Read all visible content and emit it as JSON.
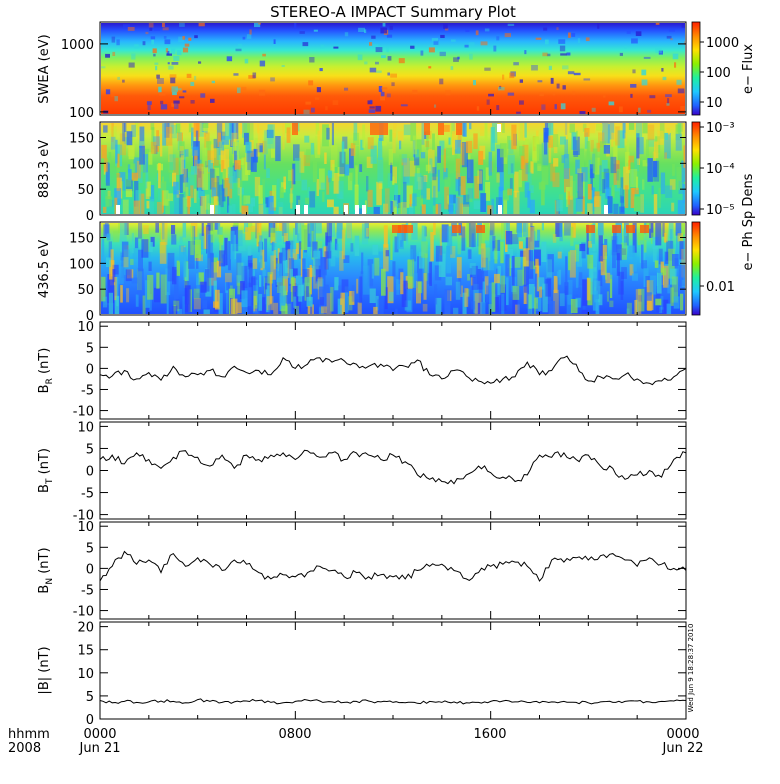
{
  "title": "STEREO-A IMPACT Summary Plot",
  "footer": {
    "time_label": "hhmm",
    "year": "2008",
    "x_ticks": [
      "0000",
      "0800",
      "1600",
      "0000"
    ],
    "date_start": "Jun 21",
    "date_end": "Jun 22"
  },
  "stamp": "Wed Jun  9 18:28:37 2010",
  "chart_data": [
    {
      "type": "heatmap",
      "name": "swea",
      "ylabel": "SWEA (eV)",
      "yscale": "log",
      "ylim": [
        90,
        2100
      ],
      "y_ticks": [
        "1000",
        "100"
      ],
      "colorbar_label": "e− Flux",
      "colorbar_ticks": [
        "1000",
        "100",
        "10"
      ],
      "x": [
        0,
        24
      ]
    },
    {
      "type": "heatmap",
      "name": "pad-883",
      "ylabel": "883.3 eV",
      "ylim": [
        0,
        180
      ],
      "y_ticks": [
        "150",
        "100",
        "50",
        "0"
      ],
      "colorbar_label": "e− Ph Sp Dens",
      "colorbar_ticks": [
        "10⁻³",
        "10⁻⁴",
        "10⁻⁵"
      ],
      "x": [
        0,
        24
      ]
    },
    {
      "type": "heatmap",
      "name": "pad-436",
      "ylabel": "436.5 eV",
      "ylim": [
        0,
        180
      ],
      "y_ticks": [
        "150",
        "100",
        "50",
        "0"
      ],
      "colorbar_label": "e− Ph Sp Dens",
      "colorbar_ticks": [
        "0.01"
      ],
      "x": [
        0,
        24
      ]
    },
    {
      "type": "line",
      "name": "br",
      "ylabel": "B_R (nT)",
      "ylim": [
        -12,
        11
      ],
      "y_ticks": [
        "10",
        "5",
        "0",
        "-5",
        "-10"
      ],
      "x": [
        0.0,
        0.5,
        1.0,
        1.5,
        2.0,
        2.5,
        3.0,
        3.5,
        4.0,
        4.5,
        5.0,
        5.5,
        6.0,
        6.5,
        7.0,
        7.5,
        8.0,
        8.5,
        9.0,
        9.5,
        10.0,
        10.5,
        11.0,
        11.5,
        12.0,
        12.5,
        13.0,
        13.5,
        14.0,
        14.5,
        15.0,
        15.5,
        16.0,
        16.5,
        17.0,
        17.5,
        18.0,
        18.5,
        19.0,
        19.5,
        20.0,
        20.5,
        21.0,
        21.5,
        22.0,
        22.5,
        23.0,
        23.5,
        24.0
      ],
      "y": [
        -1.5,
        -1.8,
        -0.5,
        -2.5,
        -1.0,
        -2.8,
        0.5,
        -2.0,
        -1.5,
        -0.5,
        -2.0,
        0.5,
        -1.0,
        -0.5,
        -1.5,
        2.5,
        0.0,
        1.0,
        2.5,
        1.5,
        1.8,
        1.0,
        0.5,
        1.0,
        -0.5,
        0.5,
        2.0,
        -1.5,
        -2.5,
        -0.5,
        -1.8,
        -3.0,
        -3.5,
        -2.5,
        -2.0,
        1.5,
        -1.5,
        -0.5,
        2.5,
        1.0,
        -3.0,
        -2.0,
        -2.5,
        -1.5,
        -2.5,
        -3.5,
        -3.0,
        -2.0,
        0.0
      ]
    },
    {
      "type": "line",
      "name": "bt",
      "ylabel": "B_T (nT)",
      "ylim": [
        -11,
        11
      ],
      "y_ticks": [
        "10",
        "5",
        "0",
        "-5",
        "-10"
      ],
      "x": [
        0.0,
        0.5,
        1.0,
        1.5,
        2.0,
        2.5,
        3.0,
        3.5,
        4.0,
        4.5,
        5.0,
        5.5,
        6.0,
        6.5,
        7.0,
        7.5,
        8.0,
        8.5,
        9.0,
        9.5,
        10.0,
        10.5,
        11.0,
        11.5,
        12.0,
        12.5,
        13.0,
        13.5,
        14.0,
        14.5,
        15.0,
        15.5,
        16.0,
        16.5,
        17.0,
        17.5,
        18.0,
        18.5,
        19.0,
        19.5,
        20.0,
        20.5,
        21.0,
        21.5,
        22.0,
        22.5,
        23.0,
        23.5,
        24.0
      ],
      "y": [
        2.5,
        3.5,
        1.5,
        4.0,
        2.5,
        0.5,
        3.0,
        4.5,
        3.0,
        1.0,
        3.5,
        0.5,
        3.5,
        2.5,
        3.5,
        4.0,
        2.5,
        4.5,
        3.0,
        4.0,
        2.5,
        4.0,
        3.5,
        2.5,
        3.5,
        2.0,
        -1.0,
        -2.0,
        -2.5,
        -3.0,
        -1.0,
        1.0,
        -0.5,
        -1.5,
        -2.5,
        -1.0,
        3.5,
        3.0,
        4.0,
        2.5,
        3.5,
        1.0,
        0.5,
        -2.0,
        -1.0,
        0.0,
        -1.5,
        2.5,
        4.0
      ]
    },
    {
      "type": "line",
      "name": "bn",
      "ylabel": "B_N (nT)",
      "ylim": [
        -12,
        11
      ],
      "y_ticks": [
        "10",
        "5",
        "0",
        "-5",
        "-10"
      ],
      "x": [
        0.0,
        0.5,
        1.0,
        1.5,
        2.0,
        2.5,
        3.0,
        3.5,
        4.0,
        4.5,
        5.0,
        5.5,
        6.0,
        6.5,
        7.0,
        7.5,
        8.0,
        8.5,
        9.0,
        9.5,
        10.0,
        10.5,
        11.0,
        11.5,
        12.0,
        12.5,
        13.0,
        13.5,
        14.0,
        14.5,
        15.0,
        15.5,
        16.0,
        16.5,
        17.0,
        17.5,
        18.0,
        18.5,
        19.0,
        19.5,
        20.0,
        20.5,
        21.0,
        21.5,
        22.0,
        22.5,
        23.0,
        23.5,
        24.0
      ],
      "y": [
        -3.0,
        0.5,
        4.0,
        1.0,
        2.0,
        -1.0,
        3.5,
        0.5,
        2.5,
        1.0,
        -0.5,
        2.0,
        1.0,
        -1.0,
        -2.5,
        -1.5,
        -2.0,
        -1.0,
        0.5,
        -0.5,
        -2.0,
        -1.0,
        -2.0,
        -1.5,
        -2.0,
        -2.5,
        -0.5,
        0.5,
        1.0,
        -0.5,
        -2.5,
        -1.0,
        0.5,
        1.0,
        1.5,
        0.5,
        -3.0,
        2.0,
        1.5,
        2.5,
        2.0,
        3.0,
        3.5,
        2.0,
        0.5,
        2.5,
        1.0,
        0.0,
        -0.5
      ]
    },
    {
      "type": "line",
      "name": "bmag",
      "ylabel": "|B| (nT)",
      "ylim": [
        0,
        21
      ],
      "y_ticks": [
        "20",
        "15",
        "10",
        "5",
        "0"
      ],
      "x": [
        0.0,
        0.5,
        1.0,
        1.5,
        2.0,
        2.5,
        3.0,
        3.5,
        4.0,
        4.5,
        5.0,
        5.5,
        6.0,
        6.5,
        7.0,
        7.5,
        8.0,
        8.5,
        9.0,
        9.5,
        10.0,
        10.5,
        11.0,
        11.5,
        12.0,
        12.5,
        13.0,
        13.5,
        14.0,
        14.5,
        15.0,
        15.5,
        16.0,
        16.5,
        17.0,
        17.5,
        18.0,
        18.5,
        19.0,
        19.5,
        20.0,
        20.5,
        21.0,
        21.5,
        22.0,
        22.5,
        23.0,
        23.5,
        24.0
      ],
      "y": [
        4.0,
        3.5,
        3.8,
        3.6,
        3.7,
        3.9,
        3.8,
        3.5,
        4.2,
        3.8,
        3.6,
        3.7,
        3.9,
        4.0,
        3.6,
        3.5,
        3.8,
        4.1,
        3.9,
        3.7,
        3.6,
        3.8,
        3.9,
        3.7,
        3.6,
        3.5,
        3.4,
        3.8,
        3.6,
        3.7,
        3.5,
        3.6,
        3.8,
        3.9,
        3.7,
        3.6,
        3.5,
        3.7,
        3.8,
        3.6,
        3.5,
        3.7,
        3.6,
        3.8,
        3.9,
        3.7,
        3.8,
        3.9,
        4.0
      ]
    }
  ]
}
